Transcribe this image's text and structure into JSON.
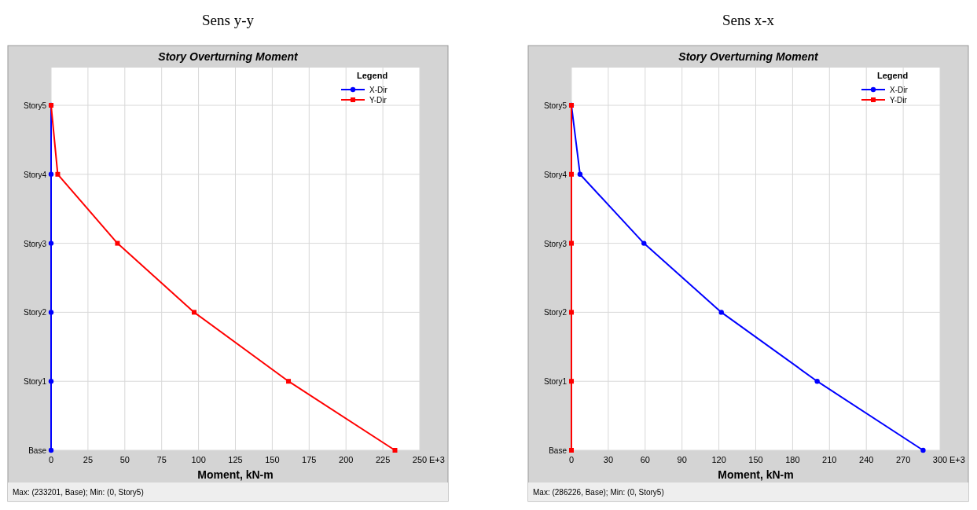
{
  "chart_data": [
    {
      "type": "line",
      "orientation": "horizontal",
      "title": "Story Overturning Moment",
      "xlabel": "Moment, kN-m",
      "legend_title": "Legend",
      "legend": "top right",
      "grid": true,
      "line_style": "solid",
      "categories": [
        "Story5",
        "Story4",
        "Story3",
        "Story2",
        "Story1",
        "Base"
      ],
      "xlim": [
        0,
        250
      ],
      "xticks": [
        0,
        25,
        50,
        75,
        100,
        125,
        150,
        175,
        200,
        225,
        250
      ],
      "series": [
        {
          "name": "X-Dir",
          "color": "#0000ff",
          "marker": "circle",
          "values": [
            0,
            0,
            0,
            0,
            0,
            0
          ]
        },
        {
          "name": "Y-Dir",
          "color": "#ff0000",
          "marker": "square",
          "values": [
            0,
            4.5,
            45,
            97,
            161,
            233.2
          ]
        }
      ],
      "annotations": [
        "Sens y-y",
        "Max: (233201, Base);  Min: (0, Story5)",
        "E+3"
      ]
    },
    {
      "type": "line",
      "orientation": "horizontal",
      "title": "Story Overturning Moment",
      "xlabel": "Moment, kN-m",
      "legend_title": "Legend",
      "legend": "top right",
      "grid": true,
      "line_style": "solid",
      "categories": [
        "Story5",
        "Story4",
        "Story3",
        "Story2",
        "Story1",
        "Base"
      ],
      "xlim": [
        0,
        300
      ],
      "xticks": [
        0,
        30,
        60,
        90,
        120,
        150,
        180,
        210,
        240,
        270,
        300
      ],
      "series": [
        {
          "name": "X-Dir",
          "color": "#0000ff",
          "marker": "circle",
          "values": [
            0,
            7,
            59,
            122,
            200,
            286.2
          ]
        },
        {
          "name": "Y-Dir",
          "color": "#ff0000",
          "marker": "square",
          "values": [
            0,
            0,
            0,
            0,
            0,
            0
          ]
        }
      ],
      "annotations": [
        "Sens x-x",
        "Max: (286226, Base);  Min: (0, Story5)",
        "E+3"
      ]
    }
  ]
}
